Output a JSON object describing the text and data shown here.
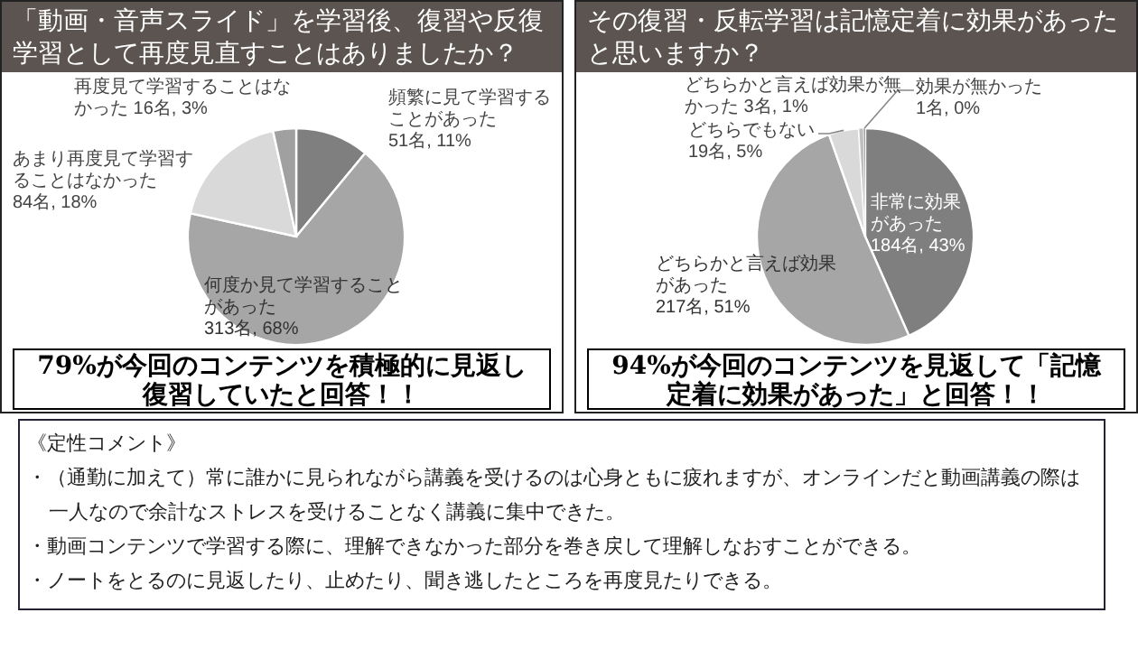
{
  "chart_data": [
    {
      "type": "pie",
      "title": "「動画・音声スライド」を学習後、復習や反復学習として再度見直すことはありましたか？",
      "categories": [
        "頻繁に見て学習することがあった",
        "何度か見て学習することがあった",
        "あまり再度見て学習することはなかった",
        "再度見て学習することはなかった"
      ],
      "values": [
        51,
        313,
        84,
        16
      ],
      "value_labels": [
        "51名, 11%",
        "313名, 68%",
        "84名, 18%",
        "16名, 3%"
      ],
      "colors": [
        "#7f7f7f",
        "#a6a6a6",
        "#d9d9d9",
        "#a0a0a0"
      ],
      "annotations": [
        "79%が今回のコンテンツを積極的に見返し復習していたと回答！！"
      ]
    },
    {
      "type": "pie",
      "title": "その復習・反転学習は記憶定着に効果があったと思いますか？",
      "categories": [
        "非常に効果があった",
        "どちらかと言えば効果があった",
        "どちらでもない",
        "どちらかと言えば効果が無かった",
        "効果が無かった"
      ],
      "values": [
        184,
        217,
        19,
        3,
        1
      ],
      "value_labels": [
        "184名, 43%",
        "217名, 51%",
        "19名, 5%",
        "3名, 1%",
        "1名, 0%"
      ],
      "colors": [
        "#7f7f7f",
        "#a6a6a6",
        "#d9d9d9",
        "#bfbfbf",
        "#595959"
      ],
      "annotations": [
        "94%が今回のコンテンツを見返して「記憶定着に効果があった」と回答！！"
      ]
    },
    {
      "type": "other",
      "title": "《定性コメント》",
      "annotations": [
        "・（通勤に加えて）常に誰かに見られながら講義を受けるのは心身ともに疲れますが、オンラインだと動画講義の際は一人なので余計なストレスを受けることなく講義に集中できた。",
        "・動画コンテンツで学習する際に、理解できなかった部分を巻き戻して理解しなおすことができる。",
        "・ノートをとるのに見返したり、止めたり、聞き逃したところを再度見たりできる。"
      ]
    }
  ]
}
